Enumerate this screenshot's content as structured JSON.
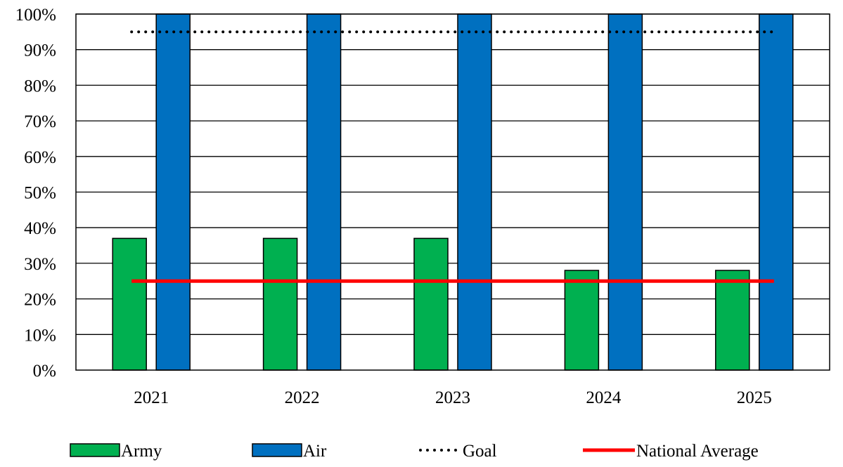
{
  "chart_data": {
    "type": "bar",
    "categories": [
      "2021",
      "2022",
      "2023",
      "2024",
      "2025"
    ],
    "series": [
      {
        "name": "Army",
        "type": "bar",
        "color": "#00b050",
        "values": [
          37,
          37,
          37,
          28,
          28
        ]
      },
      {
        "name": "Air",
        "type": "bar",
        "color": "#0070c0",
        "values": [
          100,
          100,
          100,
          100,
          100
        ]
      },
      {
        "name": "Goal",
        "type": "line",
        "style": "dotted",
        "color": "#000000",
        "values": [
          95,
          95,
          95,
          95,
          95
        ]
      },
      {
        "name": "National Average",
        "type": "line",
        "style": "solid",
        "color": "#ff0000",
        "values": [
          25,
          25,
          25,
          25,
          25
        ]
      }
    ],
    "ylim": [
      0,
      100
    ],
    "yticks": [
      "0%",
      "10%",
      "20%",
      "30%",
      "40%",
      "50%",
      "60%",
      "70%",
      "80%",
      "90%",
      "100%"
    ],
    "grid": true,
    "legend_position": "bottom"
  }
}
